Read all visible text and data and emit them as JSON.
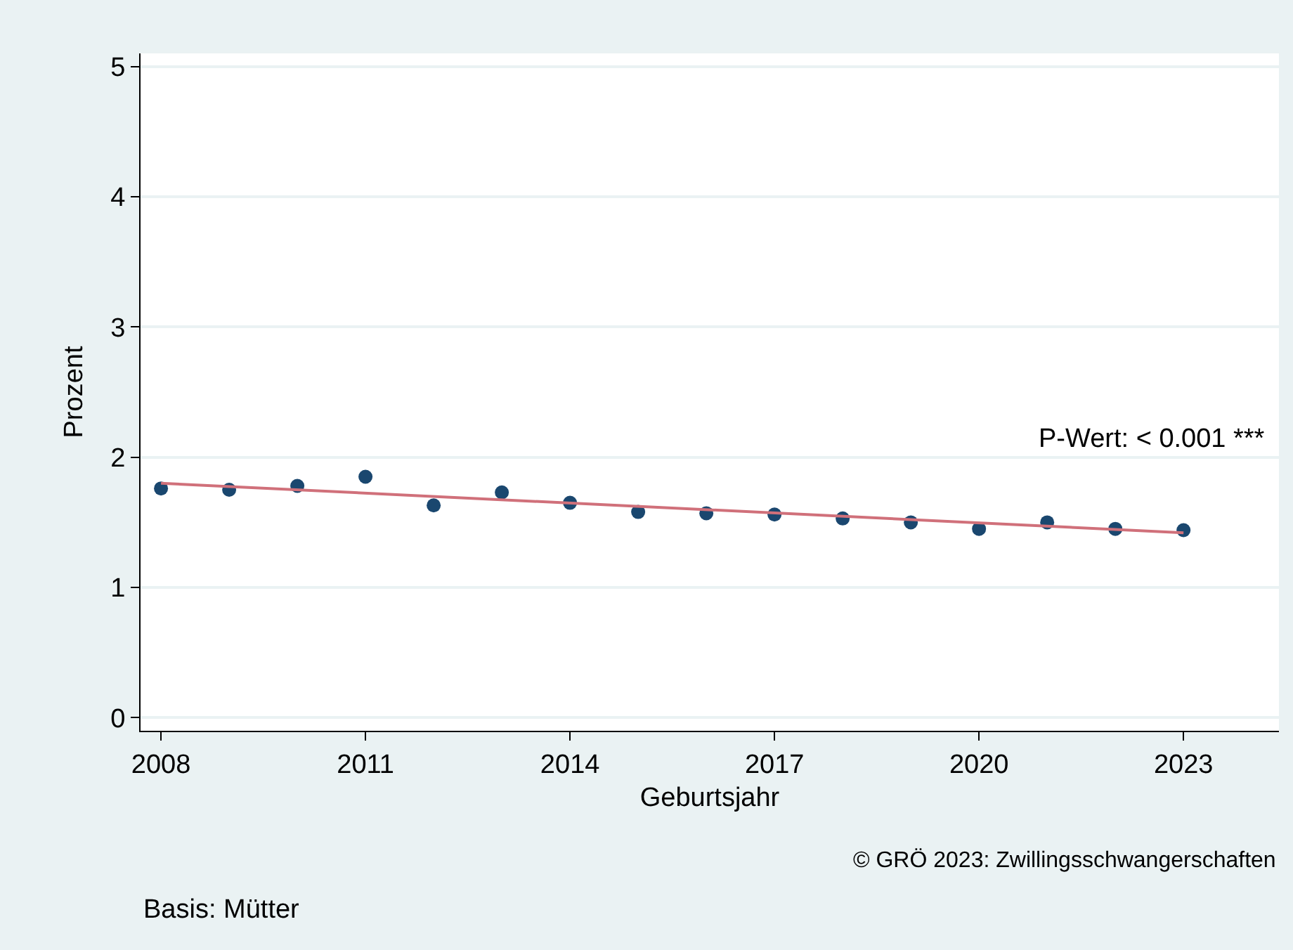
{
  "chart_data": {
    "type": "scatter",
    "xlabel": "Geburtsjahr",
    "ylabel": "Prozent",
    "x": [
      2008,
      2009,
      2010,
      2011,
      2012,
      2013,
      2014,
      2015,
      2016,
      2017,
      2018,
      2019,
      2020,
      2021,
      2022,
      2023
    ],
    "series": [
      {
        "color": "#1a476f",
        "marker": "circle",
        "values": [
          1.76,
          1.75,
          1.78,
          1.85,
          1.63,
          1.73,
          1.65,
          1.58,
          1.57,
          1.56,
          1.53,
          1.5,
          1.45,
          1.5,
          1.45,
          1.44
        ]
      },
      {
        "type": "line",
        "color": "#d0707a",
        "x": [
          2008,
          2023
        ],
        "values": [
          1.8,
          1.42
        ],
        "line_style": "solid"
      }
    ],
    "xlim": [
      2007.7,
      2024.4
    ],
    "xticks": [
      2008,
      2011,
      2014,
      2017,
      2020,
      2023
    ],
    "ylim": [
      -0.1,
      5.1
    ],
    "yticks": [
      0,
      1,
      2,
      3,
      4,
      5
    ],
    "grid": "y",
    "legend": false,
    "annotations": [
      "P-Wert: < 0.001 ***",
      "© GRÖ 2023: Zwillingsschwangerschaften",
      "Basis: Mütter"
    ]
  }
}
